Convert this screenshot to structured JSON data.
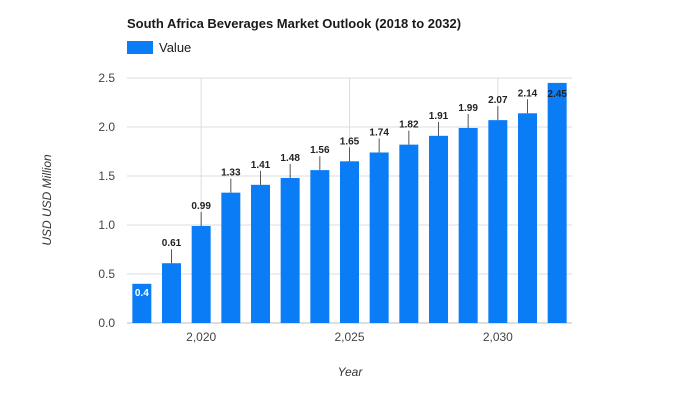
{
  "chart_data": {
    "type": "bar",
    "title": "South Africa Beverages Market Outlook (2018 to 2032)",
    "xlabel": "Year",
    "ylabel": "USD USD Million",
    "legend": {
      "position": "top-left",
      "entries": [
        "Value"
      ]
    },
    "grid": true,
    "ylim": [
      0,
      2.5
    ],
    "yticks": [
      "0.0",
      "0.5",
      "1.0",
      "1.5",
      "2.0",
      "2.5"
    ],
    "xticks": [
      {
        "value": 2020,
        "label": "2,020"
      },
      {
        "value": 2025,
        "label": "2,025"
      },
      {
        "value": 2030,
        "label": "2,030"
      }
    ],
    "x": [
      2018,
      2019,
      2020,
      2021,
      2022,
      2023,
      2024,
      2025,
      2026,
      2027,
      2028,
      2029,
      2030,
      2031,
      2032
    ],
    "series": [
      {
        "name": "Value",
        "color": "#0a7cf5",
        "values": [
          0.4,
          0.61,
          0.99,
          1.33,
          1.41,
          1.48,
          1.56,
          1.65,
          1.74,
          1.82,
          1.91,
          1.99,
          2.07,
          2.14,
          2.45
        ],
        "labels": [
          "0.4",
          "0.61",
          "0.99",
          "1.33",
          "1.41",
          "1.48",
          "1.56",
          "1.65",
          "1.74",
          "1.82",
          "1.91",
          "1.99",
          "2.07",
          "2.14",
          "2.45"
        ]
      }
    ]
  }
}
